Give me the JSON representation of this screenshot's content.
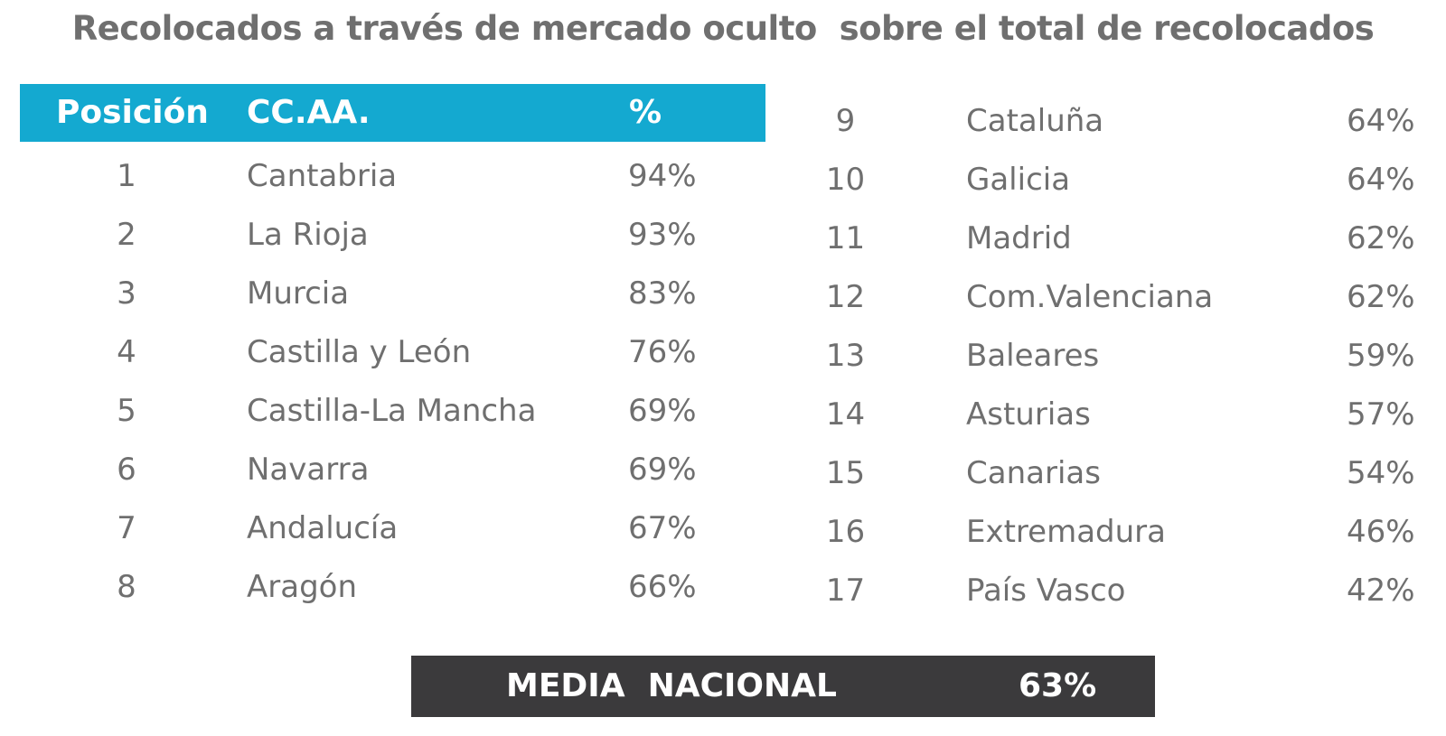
{
  "title": "Recolocados a través de mercado oculto  sobre el total de recolocados",
  "header": {
    "position": "Posición",
    "region": "CC.AA.",
    "percent": "%"
  },
  "chart_data": {
    "type": "table",
    "columns": [
      "Posición",
      "CC.AA.",
      "%"
    ],
    "rows": [
      {
        "pos": "1",
        "region": "Cantabria",
        "pct": "94%"
      },
      {
        "pos": "2",
        "region": "La Rioja",
        "pct": "93%"
      },
      {
        "pos": "3",
        "region": "Murcia",
        "pct": "83%"
      },
      {
        "pos": "4",
        "region": "Castilla y León",
        "pct": "76%"
      },
      {
        "pos": "5",
        "region": "Castilla-La Mancha",
        "pct": "69%"
      },
      {
        "pos": "6",
        "region": "Navarra",
        "pct": "69%"
      },
      {
        "pos": "7",
        "region": "Andalucía",
        "pct": "67%"
      },
      {
        "pos": "8",
        "region": "Aragón",
        "pct": "66%"
      },
      {
        "pos": "9",
        "region": "Cataluña",
        "pct": "64%"
      },
      {
        "pos": "10",
        "region": "Galicia",
        "pct": "64%"
      },
      {
        "pos": "11",
        "region": "Madrid",
        "pct": "62%"
      },
      {
        "pos": "12",
        "region": "Com.Valenciana",
        "pct": "62%"
      },
      {
        "pos": "13",
        "region": "Baleares",
        "pct": "59%"
      },
      {
        "pos": "14",
        "region": "Asturias",
        "pct": "57%"
      },
      {
        "pos": "15",
        "region": "Canarias",
        "pct": "54%"
      },
      {
        "pos": "16",
        "region": "Extremadura",
        "pct": "46%"
      },
      {
        "pos": "17",
        "region": "País Vasco",
        "pct": "42%"
      }
    ]
  },
  "media": {
    "label": "MEDIA  NACIONAL",
    "value": "63%"
  },
  "colors": {
    "header": "#14a9d0",
    "media": "#3b3a3c",
    "text": "#6f6f6f"
  }
}
